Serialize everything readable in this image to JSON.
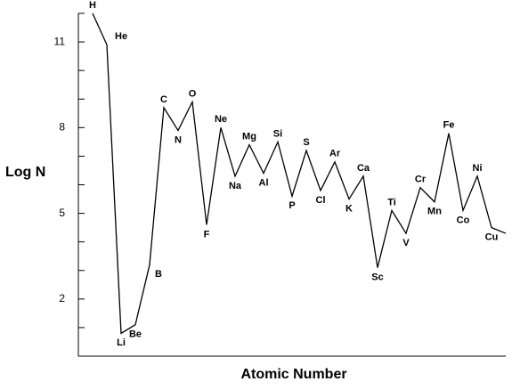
{
  "chart_data": {
    "type": "line",
    "xlabel": "Atomic Number",
    "ylabel": "Log N",
    "x": [
      1,
      2,
      3,
      4,
      5,
      6,
      7,
      8,
      9,
      10,
      11,
      12,
      13,
      14,
      15,
      16,
      17,
      18,
      19,
      20,
      21,
      22,
      23,
      24,
      25,
      26,
      27,
      28,
      29,
      30
    ],
    "values": [
      12.0,
      10.9,
      0.8,
      1.1,
      3.2,
      8.7,
      7.9,
      8.9,
      4.6,
      8.0,
      6.3,
      7.4,
      6.4,
      7.5,
      5.6,
      7.2,
      5.8,
      6.8,
      5.5,
      6.3,
      3.1,
      5.1,
      4.3,
      5.9,
      5.4,
      7.8,
      5.1,
      6.3,
      4.5,
      4.3
    ],
    "point_labels": [
      "H",
      "He",
      "Li",
      "Be",
      "B",
      "C",
      "N",
      "O",
      "F",
      "Ne",
      "Na",
      "Mg",
      "Al",
      "Si",
      "P",
      "S",
      "Cl",
      "Ar",
      "K",
      "Ca",
      "Sc",
      "Ti",
      "V",
      "Cr",
      "Mn",
      "Fe",
      "Co",
      "Ni",
      "Cu",
      null
    ],
    "color": "#000000",
    "xlim": [
      0,
      30
    ],
    "ylim": [
      0,
      12
    ],
    "yticks": [
      2,
      5,
      8,
      11
    ],
    "ytick_marks": [
      1,
      2,
      3,
      4,
      5,
      6,
      7,
      8,
      9,
      10,
      11,
      12
    ]
  }
}
